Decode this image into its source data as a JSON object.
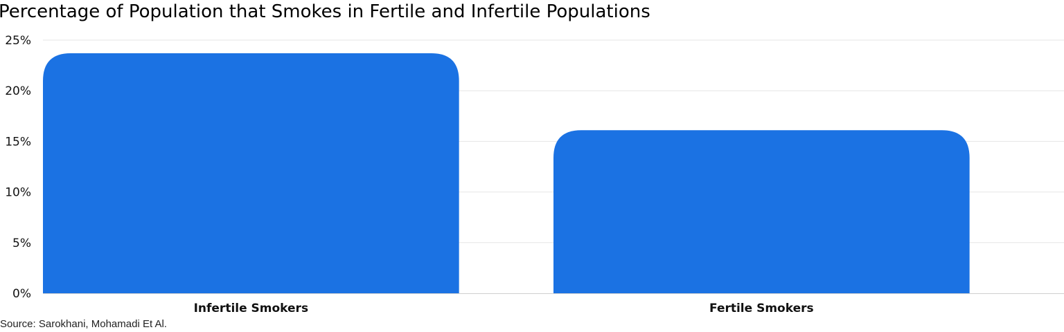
{
  "chart_data": {
    "type": "bar",
    "title": "Percentage of Population that Smokes in Fertile and Infertile Populations",
    "categories": [
      "Infertile Smokers",
      "Fertile Smokers"
    ],
    "values": [
      23.7,
      16.1
    ],
    "value_unit": "%",
    "ylim": [
      0,
      25
    ],
    "yticks": [
      0,
      5,
      10,
      15,
      20,
      25
    ],
    "ytick_labels": [
      "0%",
      "5%",
      "10%",
      "15%",
      "20%",
      "25%"
    ],
    "xlabel": "",
    "ylabel": "",
    "grid": true,
    "legend": "none",
    "bar_color": "#1b72e3",
    "source": "Source: Sarokhani, Mohamadi Et Al."
  }
}
